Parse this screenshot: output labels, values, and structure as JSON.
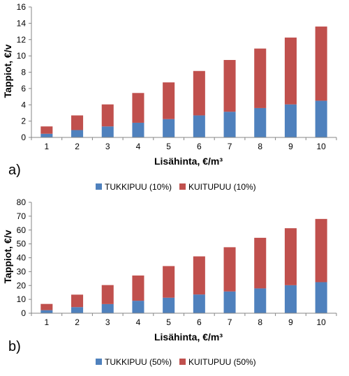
{
  "chart_data": [
    {
      "type": "bar",
      "stacked": true,
      "panel_label": "a)",
      "categories": [
        "1",
        "2",
        "3",
        "4",
        "5",
        "6",
        "7",
        "8",
        "9",
        "10"
      ],
      "series": [
        {
          "name": "TUKKIPUU (10%)",
          "color": "#4F81BD",
          "values": [
            0.45,
            0.9,
            1.35,
            1.8,
            2.25,
            2.7,
            3.15,
            3.6,
            4.05,
            4.5
          ]
        },
        {
          "name": "KUITUPUU (10%)",
          "color": "#C0504D",
          "values": [
            0.9,
            1.8,
            2.7,
            3.65,
            4.5,
            5.45,
            6.35,
            7.3,
            8.2,
            9.1
          ]
        }
      ],
      "xlabel": "Lisähinta, €/m³",
      "ylabel": "Tappiot, €/v",
      "ylim": [
        0,
        16
      ],
      "yticks": [
        "0",
        "2",
        "4",
        "6",
        "8",
        "10",
        "12",
        "14",
        "16"
      ],
      "grid": false,
      "legend_position": "bottom"
    },
    {
      "type": "bar",
      "stacked": true,
      "panel_label": "b)",
      "categories": [
        "1",
        "2",
        "3",
        "4",
        "5",
        "6",
        "7",
        "8",
        "9",
        "10"
      ],
      "series": [
        {
          "name": "TUKKIPUU (50%)",
          "color": "#4F81BD",
          "values": [
            2.2,
            4.4,
            6.6,
            9.0,
            11.2,
            13.5,
            15.7,
            17.9,
            20.2,
            22.4
          ]
        },
        {
          "name": "KUITUPUU (50%)",
          "color": "#C0504D",
          "values": [
            4.5,
            9.0,
            13.7,
            18.2,
            22.8,
            27.5,
            31.9,
            36.5,
            41.1,
            45.6
          ]
        }
      ],
      "xlabel": "Lisähinta, €/m³",
      "ylabel": "Tappiot, €/v",
      "ylim": [
        0,
        80
      ],
      "yticks": [
        "0",
        "10",
        "20",
        "30",
        "40",
        "50",
        "60",
        "70",
        "80"
      ],
      "grid": false,
      "legend_position": "bottom"
    }
  ]
}
